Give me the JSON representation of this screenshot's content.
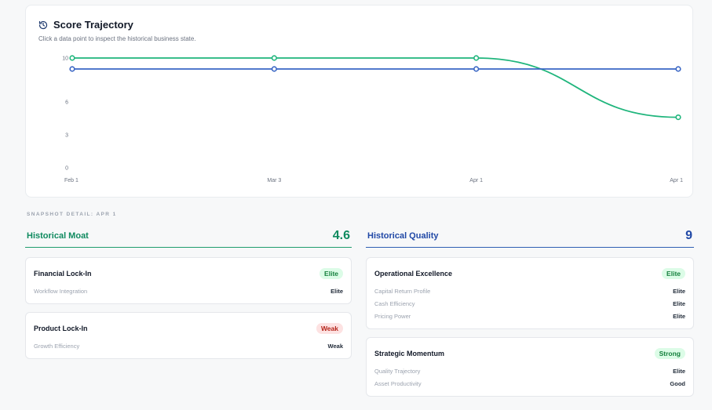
{
  "trajectory": {
    "title": "Score Trajectory",
    "subtitle": "Click a data point to inspect the historical business state.",
    "icon": "history-icon"
  },
  "chart_data": {
    "type": "line",
    "categories": [
      "Feb 1",
      "Mar 3",
      "Apr 1",
      "Apr 1"
    ],
    "y_ticks": [
      0,
      3,
      6,
      10
    ],
    "ylim": [
      0,
      10
    ],
    "grid": false,
    "series": [
      {
        "color": "#1fb57c",
        "values": [
          10,
          10,
          10,
          4.6
        ]
      },
      {
        "color": "#3a66c4",
        "values": [
          9,
          9,
          9,
          9
        ]
      }
    ]
  },
  "snapshot_label": "SNAPSHOT DETAIL: APR 1",
  "moat": {
    "name": "Historical Moat",
    "score": "4.6",
    "cards": [
      {
        "name": "Financial Lock-In",
        "badge": "Elite",
        "badge_class": "elite",
        "rows": [
          {
            "label": "Workflow Integration",
            "value": "Elite"
          }
        ]
      },
      {
        "name": "Product Lock-In",
        "badge": "Weak",
        "badge_class": "weak",
        "rows": [
          {
            "label": "Growth Efficiency",
            "value": "Weak"
          }
        ]
      }
    ]
  },
  "quality": {
    "name": "Historical Quality",
    "score": "9",
    "cards": [
      {
        "name": "Operational Excellence",
        "badge": "Elite",
        "badge_class": "elite",
        "rows": [
          {
            "label": "Capital Return Profile",
            "value": "Elite"
          },
          {
            "label": "Cash Efficiency",
            "value": "Elite"
          },
          {
            "label": "Pricing Power",
            "value": "Elite"
          }
        ]
      },
      {
        "name": "Strategic Momentum",
        "badge": "Strong",
        "badge_class": "strong",
        "rows": [
          {
            "label": "Quality Trajectory",
            "value": "Elite"
          },
          {
            "label": "Asset Productivity",
            "value": "Good"
          }
        ]
      }
    ]
  }
}
